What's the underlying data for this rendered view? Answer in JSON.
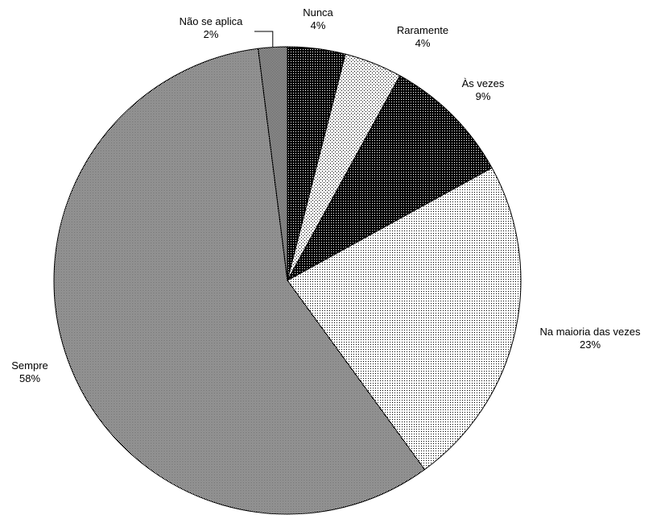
{
  "chart_data": {
    "type": "pie",
    "title": "",
    "slices": [
      {
        "label": "Nunca",
        "value": 4,
        "display": "4%",
        "pattern": "dense-dots"
      },
      {
        "label": "Raramente",
        "value": 4,
        "display": "4%",
        "pattern": "sparse-dots"
      },
      {
        "label": "Às vezes",
        "value": 9,
        "display": "9%",
        "pattern": "dark-dots"
      },
      {
        "label": "Na maioria das vezes",
        "value": 23,
        "display": "23%",
        "pattern": "fine-dots"
      },
      {
        "label": "Sempre",
        "value": 58,
        "display": "58%",
        "pattern": "crosshatch"
      },
      {
        "label": "Não se aplica",
        "value": 2,
        "display": "2%",
        "pattern": "checker"
      }
    ],
    "start_angle_deg": 0,
    "direction": "clockwise",
    "legend": "none",
    "labels": "outside"
  },
  "colors": {
    "background": "#ffffff",
    "stroke": "#000000"
  }
}
